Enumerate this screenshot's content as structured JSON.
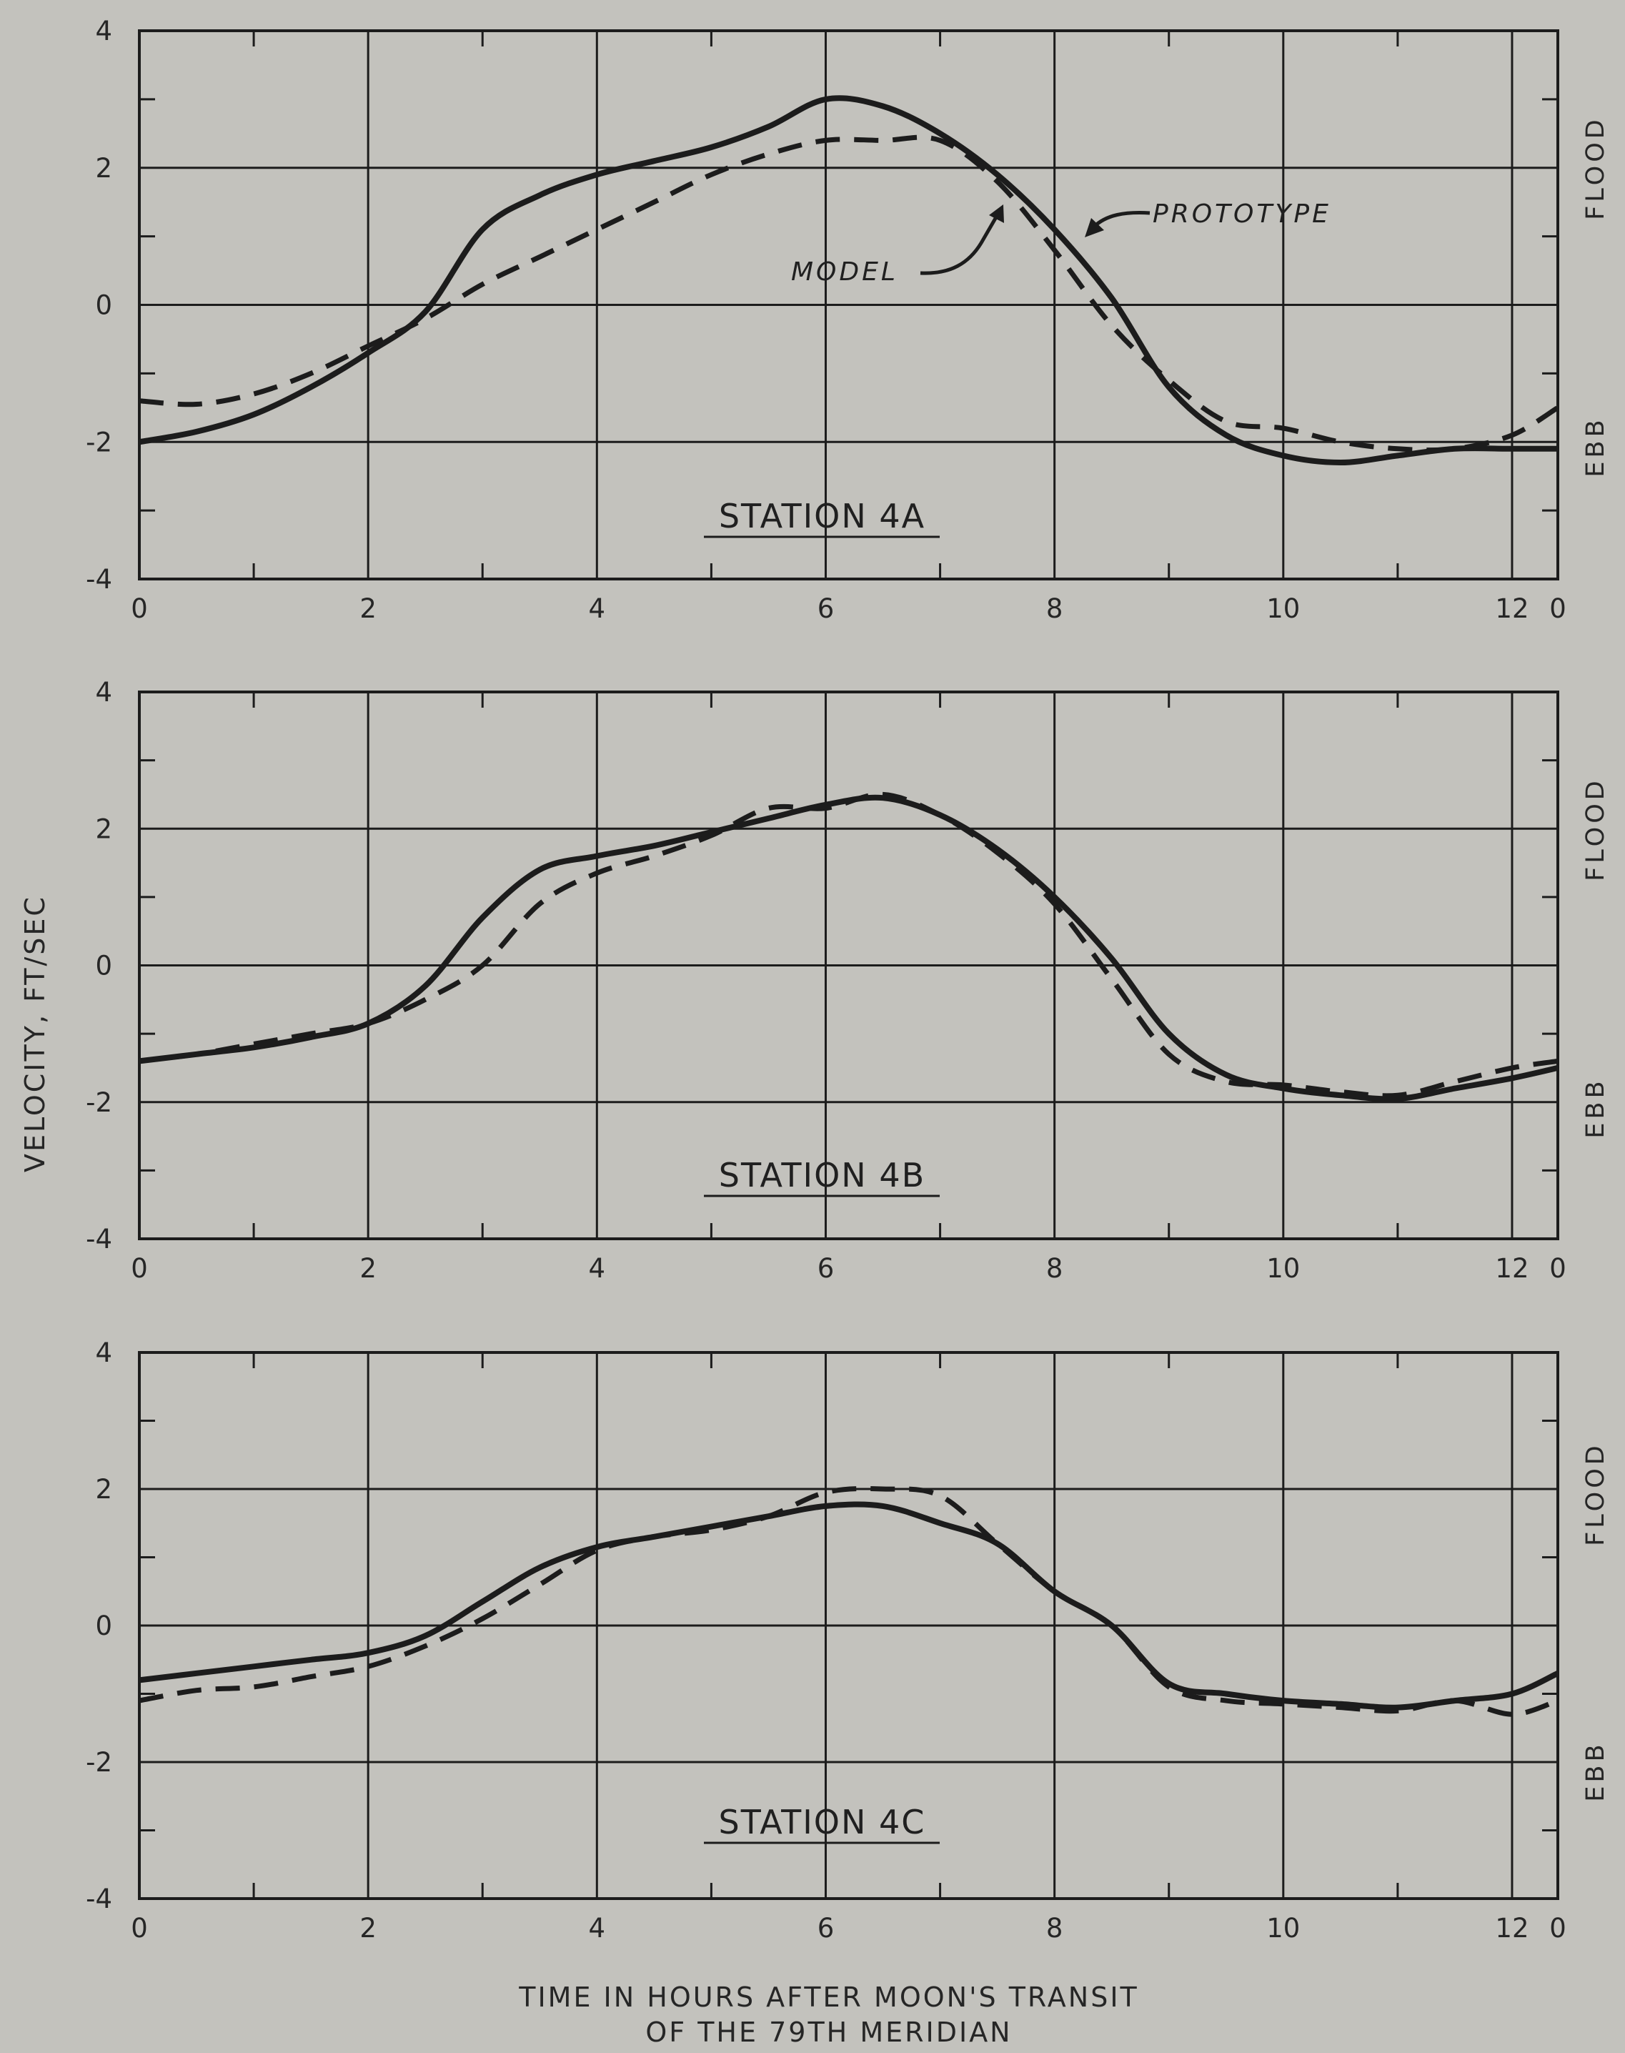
{
  "figure": {
    "ylabel": "VELOCITY, FT/SEC",
    "xlabel_line1": "TIME IN HOURS AFTER MOON'S TRANSIT",
    "xlabel_line2": "OF THE 79TH MERIDIAN",
    "flood_label": "FLOOD",
    "ebb_label": "EBB",
    "colors": {
      "background": "#c3c2bd",
      "ink": "#1c1c1c"
    }
  },
  "annotations": {
    "prototype": "PROTOTYPE",
    "model": "MODEL"
  },
  "chart_data": [
    {
      "type": "line",
      "title": "STATION 4A",
      "xlim": [
        0,
        12.4
      ],
      "ylim": [
        -4,
        4
      ],
      "xticks": [
        0,
        2,
        4,
        6,
        8,
        10,
        12
      ],
      "yticks": [
        4,
        2,
        0,
        -2,
        -4
      ],
      "right_tick_label": "0",
      "grid": true,
      "series": [
        {
          "name": "PROTOTYPE",
          "style": "solid",
          "x": [
            0,
            0.5,
            1,
            1.5,
            2,
            2.5,
            3,
            3.5,
            4,
            4.5,
            5,
            5.5,
            6,
            6.5,
            7,
            7.5,
            8,
            8.5,
            9,
            9.5,
            10,
            10.5,
            11,
            11.5,
            12,
            12.4
          ],
          "y": [
            -2.0,
            -1.85,
            -1.6,
            -1.2,
            -0.7,
            -0.1,
            1.1,
            1.6,
            1.9,
            2.1,
            2.3,
            2.6,
            3.0,
            2.9,
            2.5,
            1.9,
            1.1,
            0.1,
            -1.2,
            -1.9,
            -2.2,
            -2.3,
            -2.2,
            -2.1,
            -2.1,
            -2.1
          ]
        },
        {
          "name": "MODEL",
          "style": "dashed",
          "x": [
            0,
            0.5,
            1,
            1.5,
            2,
            2.5,
            3,
            3.5,
            4,
            4.5,
            5,
            5.5,
            6,
            6.5,
            7,
            7.5,
            8,
            8.5,
            9,
            9.5,
            10,
            10.5,
            11,
            11.5,
            12,
            12.4
          ],
          "y": [
            -1.4,
            -1.45,
            -1.3,
            -1.0,
            -0.6,
            -0.2,
            0.3,
            0.7,
            1.1,
            1.5,
            1.9,
            2.2,
            2.4,
            2.4,
            2.4,
            1.8,
            0.8,
            -0.3,
            -1.1,
            -1.7,
            -1.8,
            -2.0,
            -2.1,
            -2.1,
            -1.9,
            -1.5
          ]
        }
      ]
    },
    {
      "type": "line",
      "title": "STATION 4B",
      "xlim": [
        0,
        12.4
      ],
      "ylim": [
        -4,
        4
      ],
      "xticks": [
        0,
        2,
        4,
        6,
        8,
        10,
        12
      ],
      "yticks": [
        4,
        2,
        0,
        -2,
        -4
      ],
      "right_tick_label": "0",
      "grid": true,
      "series": [
        {
          "name": "PROTOTYPE",
          "style": "solid",
          "x": [
            0,
            0.5,
            1,
            1.5,
            2,
            2.5,
            3,
            3.5,
            4,
            4.5,
            5,
            5.5,
            6,
            6.5,
            7,
            7.5,
            8,
            8.5,
            9,
            9.5,
            10,
            10.5,
            11,
            11.5,
            12,
            12.4
          ],
          "y": [
            -1.4,
            -1.3,
            -1.2,
            -1.05,
            -0.85,
            -0.3,
            0.7,
            1.4,
            1.6,
            1.75,
            1.95,
            2.15,
            2.35,
            2.45,
            2.2,
            1.7,
            1.0,
            0.1,
            -1.0,
            -1.6,
            -1.8,
            -1.9,
            -1.95,
            -1.8,
            -1.65,
            -1.5
          ]
        },
        {
          "name": "MODEL",
          "style": "dashed",
          "x": [
            0,
            0.5,
            1,
            1.5,
            2,
            2.5,
            3,
            3.5,
            4,
            4.5,
            5,
            5.5,
            6,
            6.5,
            7,
            7.5,
            8,
            8.5,
            9,
            9.5,
            10,
            10.5,
            11,
            11.5,
            12,
            12.4
          ],
          "y": [
            -1.4,
            -1.3,
            -1.15,
            -1.0,
            -0.85,
            -0.5,
            0.0,
            0.9,
            1.35,
            1.6,
            1.9,
            2.3,
            2.3,
            2.5,
            2.2,
            1.65,
            0.9,
            -0.2,
            -1.3,
            -1.7,
            -1.75,
            -1.85,
            -1.9,
            -1.7,
            -1.5,
            -1.4
          ]
        }
      ]
    },
    {
      "type": "line",
      "title": "STATION 4C",
      "xlim": [
        0,
        12.4
      ],
      "ylim": [
        -4,
        4
      ],
      "xticks": [
        0,
        2,
        4,
        6,
        8,
        10,
        12
      ],
      "yticks": [
        4,
        2,
        0,
        -2,
        -4
      ],
      "right_tick_label": "0",
      "grid": true,
      "series": [
        {
          "name": "PROTOTYPE",
          "style": "solid",
          "x": [
            0,
            0.5,
            1,
            1.5,
            2,
            2.5,
            3,
            3.5,
            4,
            4.5,
            5,
            5.5,
            6,
            6.5,
            7,
            7.5,
            8,
            8.5,
            9,
            9.5,
            10,
            10.5,
            11,
            11.5,
            12,
            12.4
          ],
          "y": [
            -0.8,
            -0.7,
            -0.6,
            -0.5,
            -0.4,
            -0.15,
            0.35,
            0.85,
            1.15,
            1.3,
            1.45,
            1.6,
            1.75,
            1.75,
            1.5,
            1.2,
            0.5,
            0.0,
            -0.85,
            -1.0,
            -1.1,
            -1.15,
            -1.2,
            -1.1,
            -1.0,
            -0.7
          ]
        },
        {
          "name": "MODEL",
          "style": "dashed",
          "x": [
            0,
            0.5,
            1,
            1.5,
            2,
            2.5,
            3,
            3.5,
            4,
            4.5,
            5,
            5.5,
            6,
            6.5,
            7,
            7.5,
            8,
            8.5,
            9,
            9.5,
            10,
            10.5,
            11,
            11.5,
            12,
            12.4
          ],
          "y": [
            -1.1,
            -0.95,
            -0.9,
            -0.75,
            -0.6,
            -0.3,
            0.1,
            0.6,
            1.1,
            1.3,
            1.4,
            1.6,
            1.95,
            2.0,
            1.9,
            1.2,
            0.5,
            0.0,
            -0.9,
            -1.1,
            -1.15,
            -1.2,
            -1.25,
            -1.1,
            -1.3,
            -1.1
          ]
        }
      ]
    }
  ]
}
